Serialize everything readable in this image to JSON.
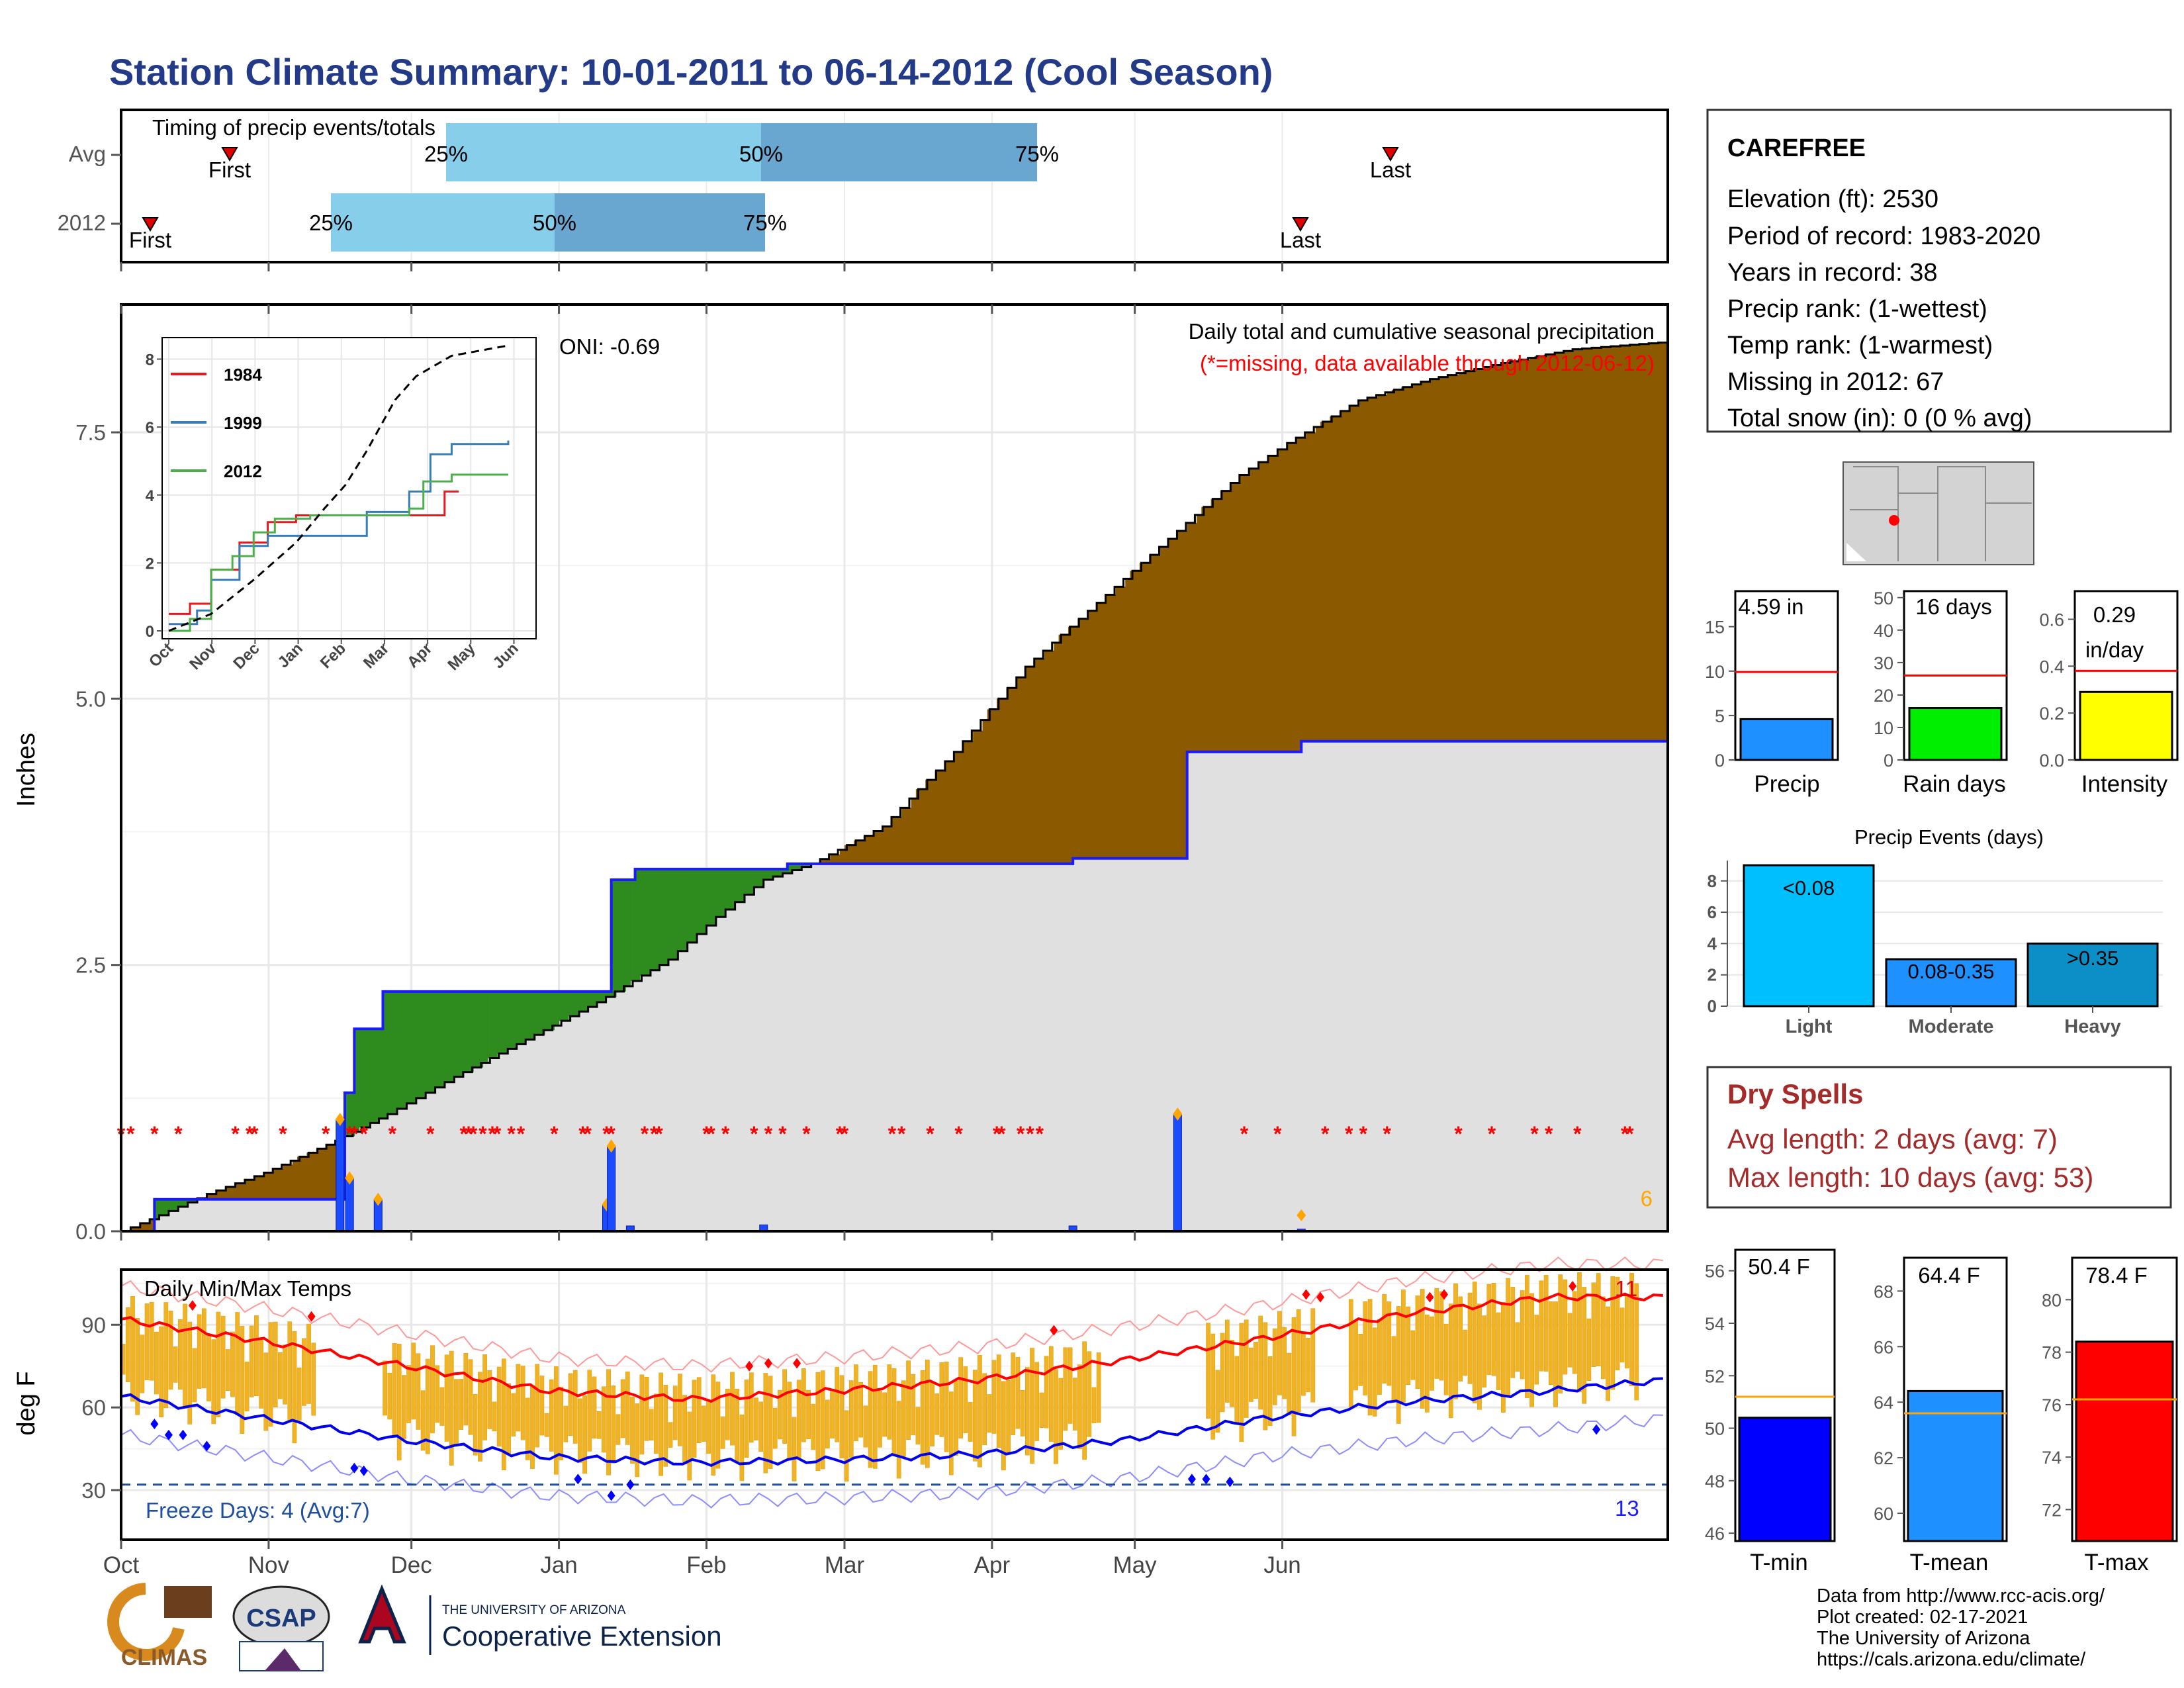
{
  "title": "Station Climate Summary: 10-01-2011 to 06-14-2012 (Cool Season)",
  "months": [
    "Oct",
    "Nov",
    "Dec",
    "Jan",
    "Feb",
    "Mar",
    "Apr",
    "May",
    "Jun"
  ],
  "timing": {
    "title": "Timing of precip events/totals",
    "rows": [
      {
        "label": "Avg",
        "first": "First",
        "last": "Last",
        "p25": "25%",
        "p50": "50%",
        "p75": "75%"
      },
      {
        "label": "2012",
        "first": "First",
        "last": "Last",
        "p25": "25%",
        "p50": "50%",
        "p75": "75%"
      }
    ]
  },
  "station": {
    "name": "CAREFREE",
    "lines": [
      "Elevation (ft): 2530",
      "Period of record: 1983-2020",
      "Years in record: 38",
      "Precip rank:  (1-wettest)",
      "Temp rank:  (1-warmest)",
      "Missing in 2012: 67",
      "Total snow (in): 0 (0 % avg)"
    ]
  },
  "precip_panel": {
    "ylabel": "Inches",
    "yticks": [
      "0.0",
      "2.5",
      "5.0",
      "7.5"
    ],
    "caption": "Daily total and cumulative seasonal precipitation",
    "missing_note": "(*=missing, data available through 2012-06-12)",
    "oni": "ONI: -0.69",
    "count_label": "6",
    "colors": {
      "above": "#8b5a00",
      "below": "#2e8b1e",
      "avg_fill": "#e0e0e0",
      "avg_line": "#1a1aff",
      "missing": "#ff0000"
    }
  },
  "inset": {
    "yticks": [
      "0",
      "2",
      "4",
      "6",
      "8"
    ],
    "xticks": [
      "Oct",
      "Nov",
      "Dec",
      "Jan",
      "Feb",
      "Mar",
      "Apr",
      "May",
      "Jun"
    ],
    "legend": [
      {
        "name": "1984",
        "color": "#e41a1c"
      },
      {
        "name": "1999",
        "color": "#377eb8"
      },
      {
        "name": "2012",
        "color": "#4daf4a"
      }
    ]
  },
  "temp_panel": {
    "title": "Daily Min/Max Temps",
    "ylabel": "deg F",
    "yticks": [
      "30",
      "60",
      "90"
    ],
    "freeze": "Freeze Days: 4 (Avg:7)",
    "hot_count": "11",
    "cold_count": "13"
  },
  "mini_charts": {
    "precip": {
      "label": "Precip",
      "value": "4.59 in",
      "yticks": [
        "0",
        "5",
        "10",
        "15"
      ]
    },
    "rain_days": {
      "label": "Rain days",
      "value": "16 days",
      "yticks": [
        "0",
        "10",
        "20",
        "30",
        "40",
        "50"
      ]
    },
    "intensity": {
      "label": "Intensity",
      "value_line1": "0.29",
      "value_line2": "in/day",
      "yticks": [
        "0.0",
        "0.2",
        "0.4",
        "0.6"
      ]
    }
  },
  "events": {
    "title": "Precip Events (days)",
    "yticks": [
      "0",
      "2",
      "4",
      "6",
      "8"
    ],
    "bars": [
      {
        "cat": "Light",
        "label": "<0.08",
        "value": 9
      },
      {
        "cat": "Moderate",
        "label": "0.08-0.35",
        "value": 3
      },
      {
        "cat": "Heavy",
        "label": ">0.35",
        "value": 4
      }
    ]
  },
  "dry_spells": {
    "title": "Dry Spells",
    "avg": "Avg length: 2 days (avg: 7)",
    "max": "Max length: 10 days (avg: 53)"
  },
  "temp_bars": [
    {
      "label": "T-min",
      "value_text": "50.4 F",
      "yticks": [
        "46",
        "48",
        "50",
        "52",
        "54",
        "56"
      ],
      "color": "#0000ff"
    },
    {
      "label": "T-mean",
      "value_text": "64.4 F",
      "yticks": [
        "60",
        "62",
        "64",
        "66",
        "68"
      ],
      "color": "#1e90ff"
    },
    {
      "label": "T-max",
      "value_text": "78.4 F",
      "yticks": [
        "72",
        "74",
        "76",
        "78",
        "80"
      ],
      "color": "#ff0000"
    }
  ],
  "footer": {
    "lines": [
      "Data from http://www.rcc-acis.org/",
      "Plot created: 02-17-2021",
      "The University of Arizona",
      "https://cals.arizona.edu/climate/"
    ],
    "logos": {
      "climas": "CLIMAS",
      "csap": "CSAP",
      "ua_small": "THE UNIVERSITY OF ARIZONA",
      "ua_big": "Cooperative Extension"
    }
  },
  "chart_data": [
    {
      "type": "area",
      "title": "Daily total and cumulative seasonal precipitation",
      "ylabel": "Inches",
      "ylim": [
        0,
        8.7
      ],
      "x_unit": "days since 2011-10-01",
      "cumulative_2012": [
        [
          0,
          0
        ],
        [
          8,
          0.15
        ],
        [
          18,
          0.35
        ],
        [
          30,
          0.55
        ],
        [
          45,
          0.85
        ],
        [
          56,
          1.1
        ],
        [
          70,
          1.45
        ],
        [
          85,
          1.8
        ],
        [
          100,
          2.15
        ],
        [
          115,
          2.55
        ],
        [
          125,
          2.95
        ],
        [
          135,
          3.3
        ],
        [
          145,
          3.45
        ],
        [
          160,
          3.8
        ],
        [
          175,
          4.5
        ],
        [
          190,
          5.3
        ],
        [
          205,
          5.9
        ],
        [
          220,
          6.5
        ],
        [
          235,
          7.1
        ],
        [
          245,
          7.4
        ],
        [
          260,
          7.8
        ],
        [
          275,
          8.0
        ],
        [
          290,
          8.15
        ],
        [
          305,
          8.28
        ],
        [
          325,
          8.35
        ]
      ],
      "cumulative_avg": [
        [
          0,
          0
        ],
        [
          7,
          0.3
        ],
        [
          45,
          0.3
        ],
        [
          47,
          1.3
        ],
        [
          49,
          1.9
        ],
        [
          55,
          2.25
        ],
        [
          96,
          2.25
        ],
        [
          103,
          3.3
        ],
        [
          108,
          3.4
        ],
        [
          140,
          3.45
        ],
        [
          200,
          3.5
        ],
        [
          222,
          3.5
        ],
        [
          224,
          4.5
        ],
        [
          248,
          4.6
        ],
        [
          325,
          4.6
        ]
      ],
      "daily": [
        [
          46,
          1.05
        ],
        [
          48,
          0.5
        ],
        [
          54,
          0.3
        ],
        [
          102,
          0.25
        ],
        [
          103,
          0.8
        ],
        [
          107,
          0.05
        ],
        [
          135,
          0.06
        ],
        [
          200,
          0.05
        ],
        [
          222,
          1.1
        ],
        [
          248,
          0.02
        ]
      ]
    },
    {
      "type": "line",
      "title": "",
      "ylim": [
        0,
        8.4
      ],
      "series": [
        {
          "name": "1984",
          "values": [
            [
              0,
              0.5
            ],
            [
              15,
              0.8
            ],
            [
              30,
              1.8
            ],
            [
              50,
              2.6
            ],
            [
              70,
              3.2
            ],
            [
              90,
              3.4
            ],
            [
              130,
              3.4
            ],
            [
              170,
              3.4
            ],
            [
              195,
              4.1
            ],
            [
              205,
              4.1
            ]
          ]
        },
        {
          "name": "1999",
          "values": [
            [
              0,
              0.2
            ],
            [
              20,
              0.6
            ],
            [
              30,
              1.5
            ],
            [
              50,
              2.5
            ],
            [
              70,
              2.8
            ],
            [
              100,
              2.8
            ],
            [
              140,
              3.5
            ],
            [
              170,
              4.1
            ],
            [
              185,
              5.2
            ],
            [
              200,
              5.5
            ],
            [
              240,
              5.6
            ]
          ]
        },
        {
          "name": "2012",
          "values": [
            [
              0,
              0.0
            ],
            [
              15,
              0.35
            ],
            [
              30,
              1.8
            ],
            [
              45,
              2.2
            ],
            [
              60,
              2.9
            ],
            [
              75,
              3.3
            ],
            [
              100,
              3.4
            ],
            [
              140,
              3.4
            ],
            [
              170,
              3.6
            ],
            [
              180,
              4.4
            ],
            [
              200,
              4.6
            ],
            [
              240,
              4.6
            ]
          ]
        },
        {
          "name": "",
          "values": [
            [
              0,
              0.0
            ],
            [
              30,
              0.5
            ],
            [
              60,
              1.5
            ],
            [
              90,
              2.6
            ],
            [
              110,
              3.6
            ],
            [
              125,
              4.3
            ],
            [
              140,
              5.3
            ],
            [
              160,
              6.8
            ],
            [
              175,
              7.5
            ],
            [
              200,
              8.1
            ],
            [
              240,
              8.4
            ]
          ]
        }
      ]
    },
    {
      "type": "bar",
      "title": "Daily Min/Max Temps",
      "ylabel": "deg F",
      "ylim": [
        12,
        110
      ],
      "normal_max": [
        [
          0,
          92
        ],
        [
          30,
          84
        ],
        [
          60,
          75
        ],
        [
          90,
          66
        ],
        [
          120,
          63
        ],
        [
          150,
          66
        ],
        [
          180,
          70
        ],
        [
          210,
          77
        ],
        [
          240,
          85
        ],
        [
          270,
          94
        ],
        [
          300,
          100
        ],
        [
          325,
          100
        ]
      ],
      "normal_min": [
        [
          0,
          64
        ],
        [
          30,
          56
        ],
        [
          60,
          48
        ],
        [
          90,
          42
        ],
        [
          120,
          40
        ],
        [
          150,
          41
        ],
        [
          180,
          43
        ],
        [
          210,
          48
        ],
        [
          240,
          56
        ],
        [
          270,
          62
        ],
        [
          300,
          66
        ],
        [
          325,
          70
        ]
      ],
      "freeze_line": 32
    },
    {
      "type": "bar",
      "categories": [
        "Precip",
        "Rain days",
        "Intensity"
      ],
      "values": [
        4.59,
        16,
        0.29
      ],
      "averages": [
        9.9,
        26,
        0.38
      ],
      "ylims": [
        [
          0,
          19
        ],
        [
          0,
          52
        ],
        [
          0,
          0.72
        ]
      ]
    },
    {
      "type": "bar",
      "title": "Precip Events (days)",
      "categories": [
        "Light",
        "Moderate",
        "Heavy"
      ],
      "values": [
        9,
        3,
        4
      ],
      "ylim": [
        0,
        9.3
      ]
    },
    {
      "type": "bar",
      "categories": [
        "T-min",
        "T-mean",
        "T-max"
      ],
      "values": [
        50.4,
        64.4,
        78.4
      ],
      "averages": [
        51.2,
        63.6,
        76.2
      ],
      "ylims": [
        [
          45.7,
          56.8
        ],
        [
          59,
          69.2
        ],
        [
          70.8,
          81.6
        ]
      ]
    }
  ]
}
